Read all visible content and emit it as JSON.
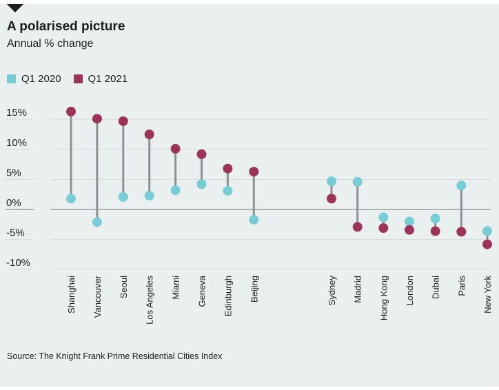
{
  "header": {
    "title": "A polarised picture",
    "subtitle": "Annual % change"
  },
  "footer": {
    "source": "Source: The Knight Frank Prime Residential Cities Index"
  },
  "colors": {
    "background": "#eaf0ef",
    "q1_2020": "#77cdd3",
    "q1_2021": "#9b3558",
    "stem": "#8e9095",
    "gridline": "#d6dcdb",
    "zeroline": "#8a8c8f",
    "text": "#1d1d1b"
  },
  "chart_data": {
    "type": "dumbbell",
    "title": "A polarised picture",
    "subtitle": "Annual % change",
    "xlabel": "",
    "ylabel": "",
    "ylim": [
      -10,
      15
    ],
    "yticks": [
      15,
      10,
      5,
      0,
      -5,
      -10
    ],
    "ytick_labels": [
      "15%",
      "10%",
      "5%",
      "0%",
      "-5%",
      "-10%"
    ],
    "grid": true,
    "legend_position": "top-left",
    "groups": [
      [
        "Shanghai",
        "Vancouver",
        "Seoul",
        "Los Angeles",
        "Miami",
        "Geneva",
        "Edinburgh",
        "Beijing"
      ],
      [
        "Sydney",
        "Madrid",
        "Hong Kong",
        "London",
        "Dubai",
        "Paris",
        "New York"
      ]
    ],
    "categories": [
      "Shanghai",
      "Vancouver",
      "Seoul",
      "Los Angeles",
      "Miami",
      "Geneva",
      "Edinburgh",
      "Beijing",
      "Sydney",
      "Madrid",
      "Hong Kong",
      "London",
      "Dubai",
      "Paris",
      "New York"
    ],
    "series": [
      {
        "name": "Q1 2020",
        "values": [
          1.8,
          -2.1,
          2.1,
          2.3,
          3.2,
          4.2,
          3.1,
          -1.7,
          4.7,
          4.6,
          -1.3,
          -2.0,
          -1.5,
          4.0,
          -3.6
        ]
      },
      {
        "name": "Q1 2021",
        "values": [
          16.3,
          15.1,
          14.7,
          12.5,
          10.1,
          9.2,
          6.8,
          6.3,
          1.8,
          -2.9,
          -3.1,
          -3.4,
          -3.6,
          -3.7,
          -5.8
        ]
      }
    ]
  }
}
